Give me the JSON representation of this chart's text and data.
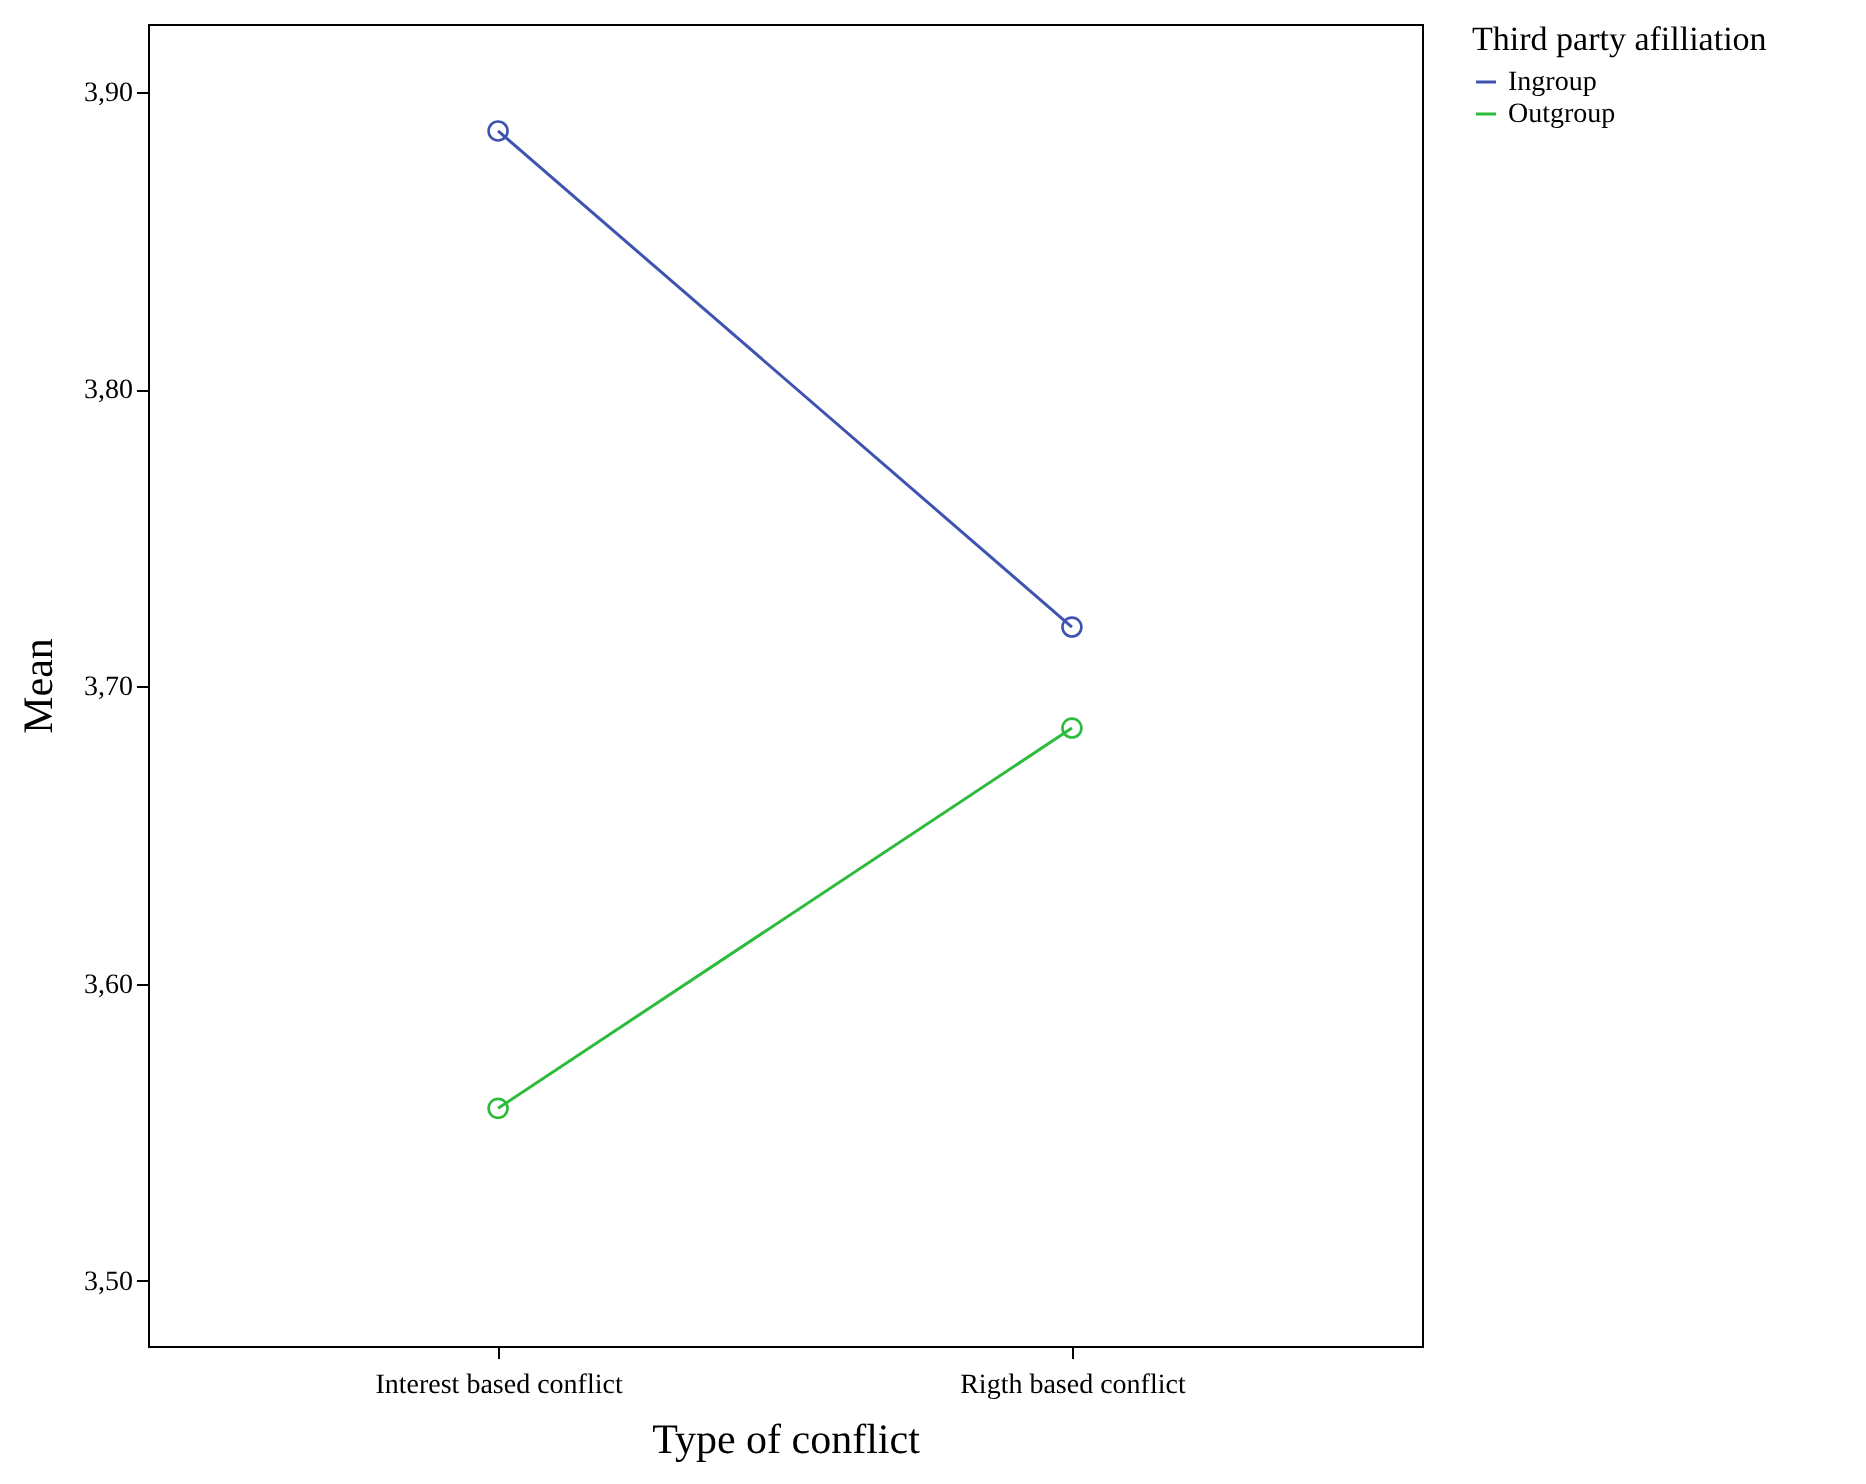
{
  "chart_data": {
    "type": "line",
    "xlabel": "Type of conflict",
    "ylabel": "Mean",
    "legend_title": "Third party afilliation",
    "categories": [
      "Interest based conflict",
      "Rigth based conflict"
    ],
    "series": [
      {
        "name": "Ingroup",
        "color": "#3e53b0",
        "values": [
          3.887,
          3.72
        ]
      },
      {
        "name": "Outgroup",
        "color": "#2dbb3c",
        "values": [
          3.558,
          3.686
        ]
      }
    ],
    "ylim": [
      3.478,
      3.923
    ],
    "yticks": [
      {
        "value": 3.5,
        "label": "3,50"
      },
      {
        "value": 3.6,
        "label": "3,60"
      },
      {
        "value": 3.7,
        "label": "3,70"
      },
      {
        "value": 3.8,
        "label": "3,80"
      },
      {
        "value": 3.9,
        "label": "3,90"
      }
    ],
    "marker": "circle",
    "grid": false,
    "legend": "top right",
    "line_style": "solid"
  }
}
